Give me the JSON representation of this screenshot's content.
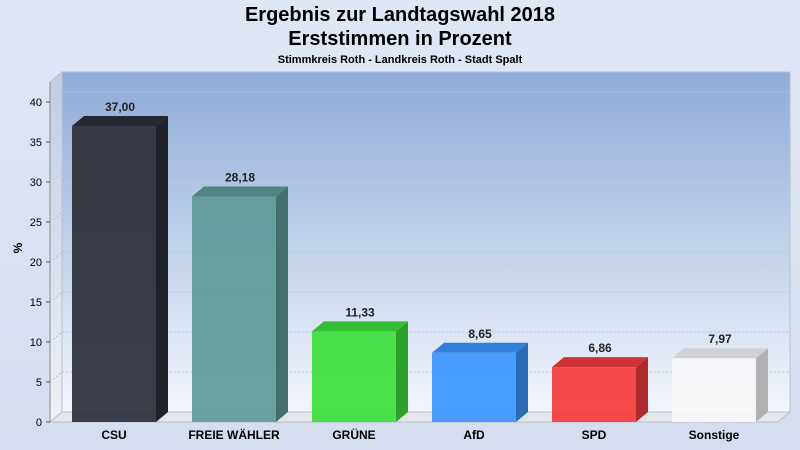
{
  "chart_data": {
    "type": "bar",
    "title": "Ergebnis zur Landtagswahl 2018",
    "title2": "Erststimmen in Prozent",
    "subtitle": "Stimmkreis Roth - Landkreis Roth - Stadt Spalt",
    "ylabel": "%",
    "xlabel": "",
    "ylim": [
      0,
      40
    ],
    "yticks": [
      "0",
      "5",
      "10",
      "15",
      "20",
      "25",
      "30",
      "35",
      "40"
    ],
    "grid": true,
    "categories": [
      "CSU",
      "FREIE WÄHLER",
      "GRÜNE",
      "AfD",
      "SPD",
      "Sonstige"
    ],
    "values": [
      37.0,
      28.18,
      11.33,
      8.65,
      6.86,
      7.97
    ],
    "value_labels": [
      "37,00",
      "28,18",
      "11,33",
      "8,65",
      "6,86",
      "7,97"
    ],
    "colors": [
      "#2b2f38",
      "#5f9a98",
      "#3ce03c",
      "#3a96ff",
      "#f53c3c",
      "#f6f6f8"
    ]
  }
}
